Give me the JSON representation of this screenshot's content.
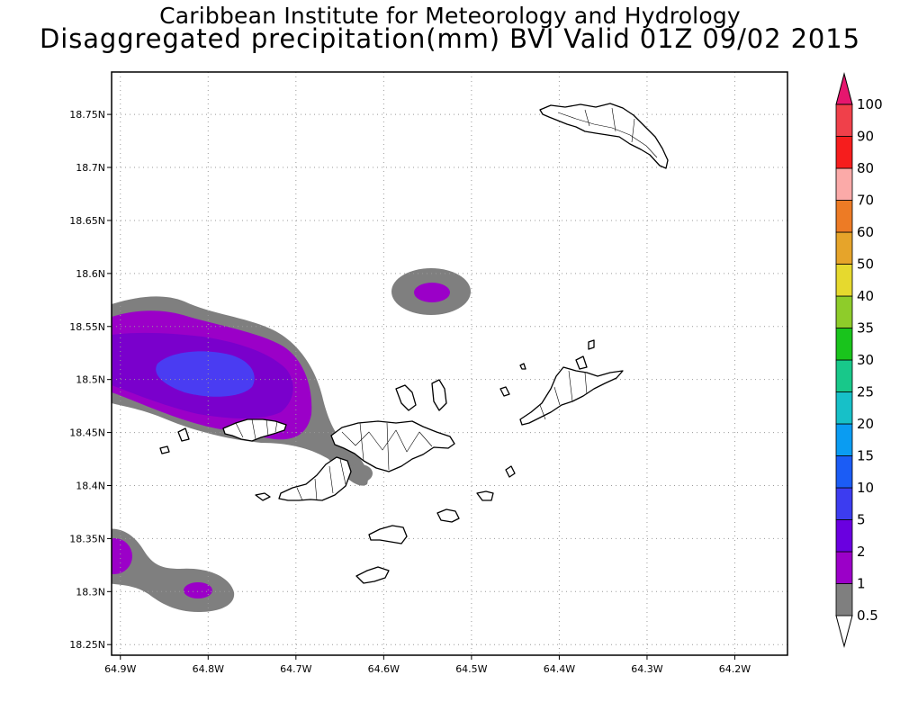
{
  "header": {
    "institution": "Caribbean Institute for Meteorology and Hydrology",
    "product": "Disaggregated precipitation(mm) BVI Valid 01Z 09/02 2015"
  },
  "axes": {
    "lat_labels": [
      "18.75N",
      "18.7N",
      "18.65N",
      "18.6N",
      "18.55N",
      "18.5N",
      "18.45N",
      "18.4N",
      "18.35N",
      "18.3N",
      "18.25N"
    ],
    "lon_labels": [
      "64.9W",
      "64.8W",
      "64.7W",
      "64.6W",
      "64.5W",
      "64.4W",
      "64.3W",
      "64.2W"
    ],
    "lat_values": [
      18.75,
      18.7,
      18.65,
      18.6,
      18.55,
      18.5,
      18.45,
      18.4,
      18.35,
      18.3,
      18.25
    ],
    "lon_values": [
      -64.9,
      -64.8,
      -64.7,
      -64.6,
      -64.5,
      -64.4,
      -64.3,
      -64.2
    ],
    "lat_range": [
      18.24,
      18.79
    ],
    "lon_range": [
      -64.91,
      -64.14
    ],
    "grid": "dotted"
  },
  "colorbar": {
    "labels": [
      "0.5",
      "1",
      "2",
      "5",
      "10",
      "15",
      "20",
      "25",
      "30",
      "35",
      "40",
      "50",
      "60",
      "70",
      "80",
      "90",
      "100"
    ],
    "colors": [
      "#ffffff",
      "#7f7f7f",
      "#9b00c8",
      "#6a00e0",
      "#3c3cf0",
      "#1b5cf5",
      "#0a9cf2",
      "#17c0c8",
      "#18c88a",
      "#19c41c",
      "#8ecc2a",
      "#e6d92e",
      "#e6a42a",
      "#ed7b25",
      "#fbaaa8",
      "#f61d1d",
      "#f0404a",
      "#e6166e"
    ]
  },
  "precip_areas": [
    {
      "lon": -64.77,
      "lat": 18.505,
      "max_class": "5-10",
      "color": "#4a3cf2"
    },
    {
      "lon": -64.545,
      "lat": 18.575,
      "max_class": "2-5",
      "color": "#9b00c8"
    },
    {
      "lon": -64.9,
      "lat": 18.335,
      "max_class": "2-5",
      "color": "#9b00c8"
    },
    {
      "lon": -64.81,
      "lat": 18.3,
      "max_class": "2-5",
      "color": "#9b00c8"
    },
    {
      "lon": -64.63,
      "lat": 18.41,
      "max_class": "1-2",
      "color": "#7f7f7f"
    }
  ]
}
